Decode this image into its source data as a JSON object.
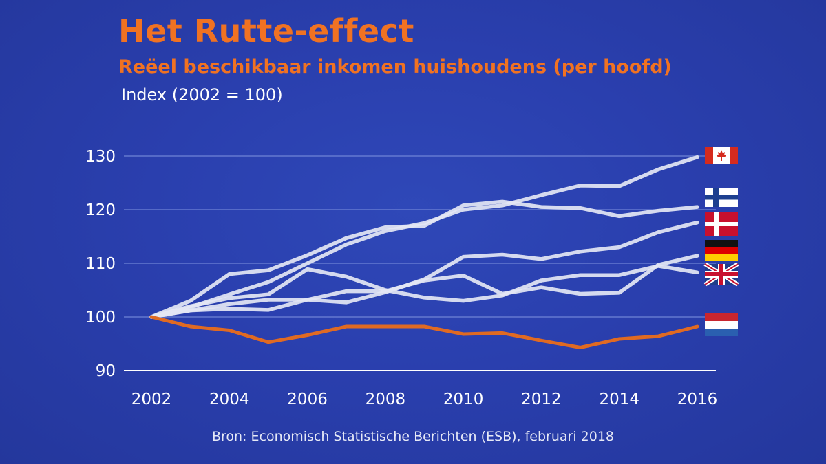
{
  "title": "Het Rutte-effect",
  "subtitle": "Reëel beschikbaar inkomen huishoudens (per hoofd)",
  "index_label": "Index (2002 = 100)",
  "source": "Bron: Economisch Statistische Berichten (ESB), februari 2018",
  "colors": {
    "background": "#2a3fae",
    "accent": "#f07222",
    "netherlands_line": "#e06a22",
    "other_lines": "#e4e7f4"
  },
  "chart_data": {
    "type": "line",
    "title": "Het Rutte-effect",
    "subtitle": "Reëel beschikbaar inkomen huishoudens (per hoofd)",
    "ylabel": "Index (2002 = 100)",
    "xlabel": "",
    "x": [
      2002,
      2003,
      2004,
      2005,
      2006,
      2007,
      2008,
      2009,
      2010,
      2011,
      2012,
      2013,
      2014,
      2015,
      2016
    ],
    "xticks": [
      2002,
      2004,
      2006,
      2008,
      2010,
      2012,
      2014,
      2016
    ],
    "yticks": [
      90,
      100,
      110,
      120,
      130
    ],
    "xlim": [
      2002,
      2016
    ],
    "ylim": [
      90,
      130
    ],
    "grid": true,
    "legend": "flags at right end of each line",
    "series": [
      {
        "name": "Canada",
        "flag": "canada-flag",
        "values": [
          100,
          101.8,
          104.2,
          106.5,
          110.0,
          113.5,
          116.0,
          117.5,
          120.0,
          120.8,
          122.7,
          124.5,
          124.4,
          127.5,
          129.8
        ]
      },
      {
        "name": "Finland",
        "flag": "finland-flag",
        "values": [
          100,
          103.0,
          108.0,
          108.7,
          111.5,
          114.7,
          116.7,
          117.0,
          120.8,
          121.5,
          120.5,
          120.3,
          118.8,
          119.8,
          120.5
        ]
      },
      {
        "name": "Denemarken",
        "flag": "denmark-flag",
        "values": [
          100,
          101.2,
          101.5,
          101.3,
          103.2,
          102.7,
          104.6,
          107.0,
          111.2,
          111.6,
          110.8,
          112.2,
          113.0,
          115.8,
          117.6
        ]
      },
      {
        "name": "Duitsland",
        "flag": "germany-flag",
        "values": [
          100,
          101.2,
          102.4,
          103.2,
          103.2,
          104.8,
          104.8,
          106.8,
          107.7,
          104.3,
          105.5,
          104.3,
          104.5,
          109.7,
          111.4
        ]
      },
      {
        "name": "Verenigd Koninkrijk",
        "flag": "uk-flag",
        "values": [
          100,
          102.0,
          103.5,
          104.2,
          108.9,
          107.5,
          105.0,
          103.6,
          103.0,
          104.0,
          106.8,
          107.8,
          107.8,
          109.5,
          108.3
        ]
      },
      {
        "name": "Nederland",
        "flag": "netherlands-flag",
        "highlight": true,
        "values": [
          100,
          98.2,
          97.5,
          95.3,
          96.6,
          98.2,
          98.2,
          98.2,
          96.8,
          97.0,
          95.6,
          94.3,
          95.9,
          96.4,
          98.2
        ]
      }
    ]
  }
}
